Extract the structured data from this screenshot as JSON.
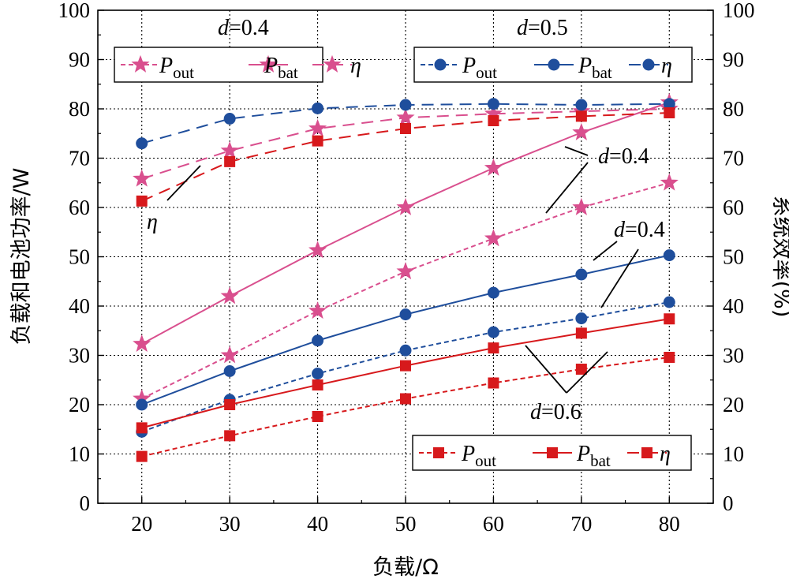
{
  "chart_data": {
    "type": "line",
    "x_axis": {
      "label": "负载/Ω",
      "range": [
        15,
        85
      ],
      "ticks": [
        "20",
        "30",
        "40",
        "50",
        "60",
        "70",
        "80"
      ]
    },
    "y_axis_left": {
      "label": "负载和电池功率/W",
      "range": [
        0,
        100
      ],
      "ticks": [
        "0",
        "10",
        "20",
        "30",
        "40",
        "50",
        "60",
        "70",
        "80",
        "90",
        "100"
      ]
    },
    "y_axis_right": {
      "label": "系统效率(%)",
      "range": [
        0,
        100
      ],
      "ticks": [
        "0",
        "10",
        "20",
        "30",
        "40",
        "50",
        "60",
        "70",
        "80",
        "90",
        "100"
      ]
    },
    "grid": true,
    "x": [
      20,
      30,
      40,
      50,
      60,
      70,
      80
    ],
    "series": [
      {
        "group": "d=0.4",
        "quantity": "P_out",
        "marker": "star",
        "dash": "short",
        "color": "#d94f8e",
        "values": [
          21.2,
          30,
          39,
          47,
          53.7,
          60,
          65
        ]
      },
      {
        "group": "d=0.4",
        "quantity": "P_bat",
        "marker": "star",
        "dash": "solid",
        "color": "#d94f8e",
        "values": [
          32.3,
          42,
          51.3,
          60,
          68,
          75.2,
          81.3
        ]
      },
      {
        "group": "d=0.4",
        "quantity": "eta",
        "marker": "star",
        "dash": "long",
        "color": "#d94f8e",
        "values": [
          65.8,
          71.5,
          76,
          78.2,
          79,
          79.5,
          80
        ]
      },
      {
        "group": "d=0.5",
        "quantity": "P_out",
        "marker": "circle",
        "dash": "short",
        "color": "#1f4e9c",
        "values": [
          14.5,
          21,
          26.3,
          31,
          34.7,
          37.5,
          40.8
        ]
      },
      {
        "group": "d=0.5",
        "quantity": "P_bat",
        "marker": "circle",
        "dash": "solid",
        "color": "#1f4e9c",
        "values": [
          20,
          26.8,
          33,
          38.3,
          42.7,
          46.4,
          50.3
        ]
      },
      {
        "group": "d=0.5",
        "quantity": "eta",
        "marker": "circle",
        "dash": "long",
        "color": "#1f4e9c",
        "values": [
          73,
          78,
          80.1,
          80.8,
          81,
          80.8,
          81
        ]
      },
      {
        "group": "d=0.6",
        "quantity": "P_out",
        "marker": "square",
        "dash": "short",
        "color": "#d7191c",
        "values": [
          9.5,
          13.7,
          17.6,
          21.2,
          24.4,
          27.2,
          29.6
        ]
      },
      {
        "group": "d=0.6",
        "quantity": "P_bat",
        "marker": "square",
        "dash": "solid",
        "color": "#d7191c",
        "values": [
          15.3,
          20,
          24,
          27.9,
          31.5,
          34.5,
          37.4
        ]
      },
      {
        "group": "d=0.6",
        "quantity": "eta",
        "marker": "square",
        "dash": "long",
        "color": "#d7191c",
        "values": [
          61.3,
          69.3,
          73.5,
          76,
          77.6,
          78.5,
          79.2
        ]
      }
    ],
    "legends": [
      {
        "group": "d=0.4",
        "placement": "top-left",
        "entries": [
          {
            "main": "P",
            "sub": "out"
          },
          {
            "main": "P",
            "sub": "bat"
          },
          {
            "main": "η",
            "sub": ""
          }
        ]
      },
      {
        "group": "d=0.5",
        "placement": "top-right",
        "entries": [
          {
            "main": "P",
            "sub": "out"
          },
          {
            "main": "P",
            "sub": "bat"
          },
          {
            "main": "η",
            "sub": ""
          }
        ]
      },
      {
        "group": "d=0.6",
        "placement": "bottom-right",
        "entries": [
          {
            "main": "P",
            "sub": "out"
          },
          {
            "main": "P",
            "sub": "bat"
          },
          {
            "main": "η",
            "sub": ""
          }
        ]
      }
    ],
    "annotations": [
      {
        "var": "d",
        "text": "=0.4"
      },
      {
        "var": "d",
        "text": "=0.5"
      },
      {
        "var": "η",
        "text": ""
      },
      {
        "var": "d",
        "text": "=0.4"
      },
      {
        "var": "d",
        "text": "=0.4"
      },
      {
        "var": "d",
        "text": "=0.6"
      }
    ]
  }
}
